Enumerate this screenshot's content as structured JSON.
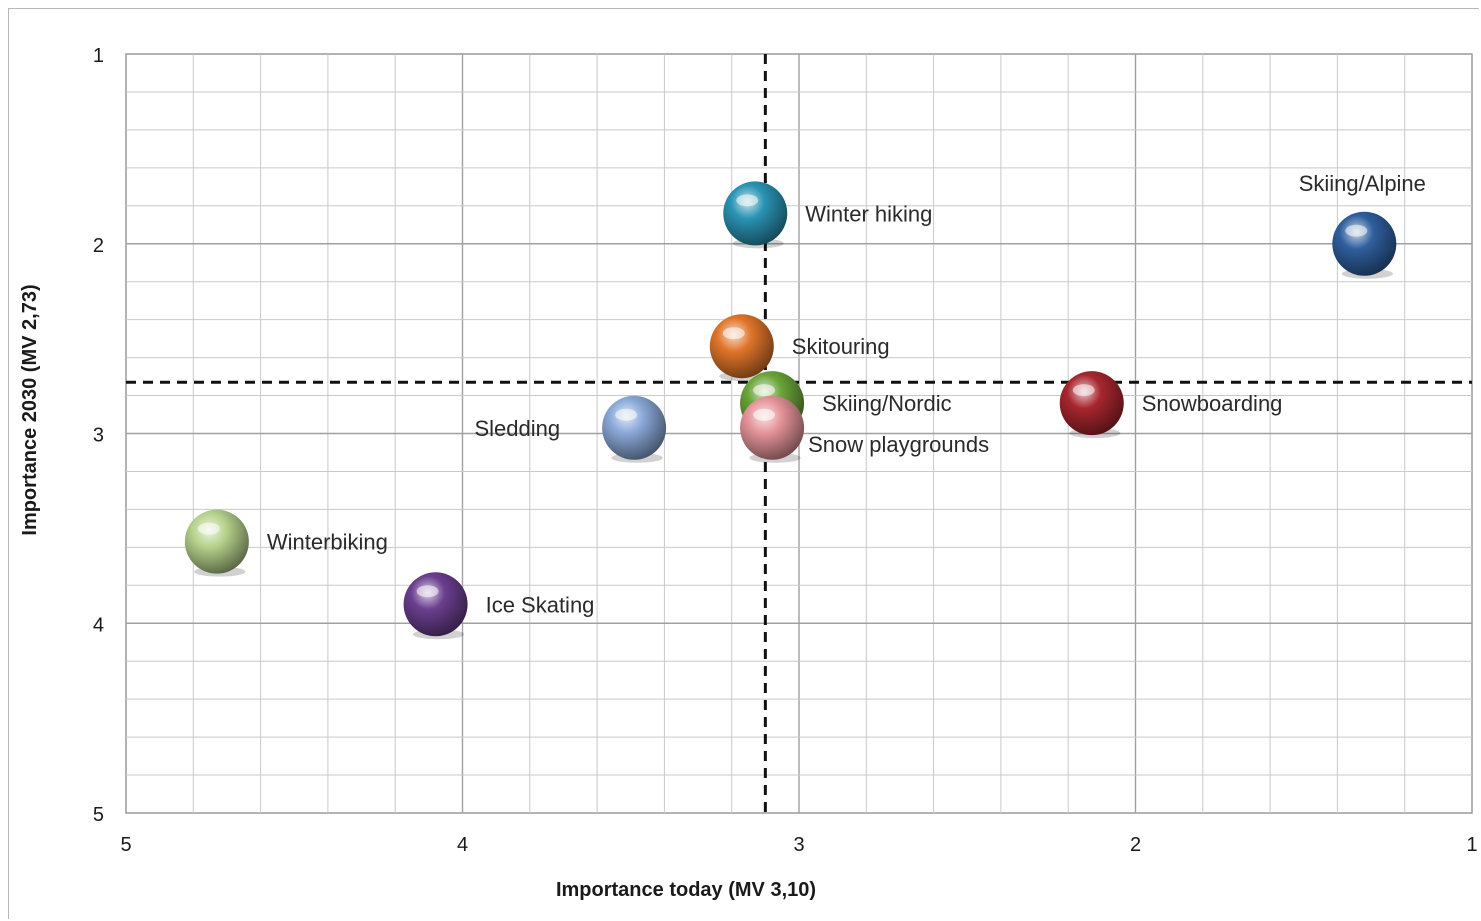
{
  "chart_data": {
    "type": "scatter",
    "title": "",
    "xlabel": "Importance today (MV 3,10)",
    "ylabel": "Importance 2030 (MV 2,73)",
    "xlim": [
      5,
      1
    ],
    "ylim": [
      1,
      5
    ],
    "x_reversed": true,
    "y_reversed": true,
    "xticks": [
      "5",
      "4",
      "3",
      "2",
      "1"
    ],
    "yticks": [
      "1",
      "2",
      "3",
      "4",
      "5"
    ],
    "grid": true,
    "reference_lines": {
      "x": 3.1,
      "y": 2.73,
      "style": "dashed"
    },
    "points": [
      {
        "label": "Winter hiking",
        "x": 3.13,
        "y": 1.84,
        "color": "#2a93b4",
        "label_side": "right"
      },
      {
        "label": "Skiing/Alpine",
        "x": 1.32,
        "y": 2.0,
        "color": "#2f5f9e",
        "label_side": "above"
      },
      {
        "label": "Skitouring",
        "x": 3.17,
        "y": 2.54,
        "color": "#e0752a",
        "label_side": "right"
      },
      {
        "label": "Skiing/Nordic",
        "x": 3.08,
        "y": 2.84,
        "color": "#6aa53a",
        "label_side": "right"
      },
      {
        "label": "Snowboarding",
        "x": 2.13,
        "y": 2.84,
        "color": "#a8262e",
        "label_side": "right"
      },
      {
        "label": "Sledding",
        "x": 3.49,
        "y": 2.97,
        "color": "#8aa8d8",
        "label_side": "left"
      },
      {
        "label": "Snow playgrounds",
        "x": 3.08,
        "y": 2.97,
        "color": "#e5949a",
        "label_side": "right-below"
      },
      {
        "label": "Winterbiking",
        "x": 4.73,
        "y": 3.57,
        "color": "#b6d28c",
        "label_side": "right"
      },
      {
        "label": "Ice Skating",
        "x": 4.08,
        "y": 3.9,
        "color": "#6a3f8f",
        "label_side": "right"
      }
    ]
  }
}
